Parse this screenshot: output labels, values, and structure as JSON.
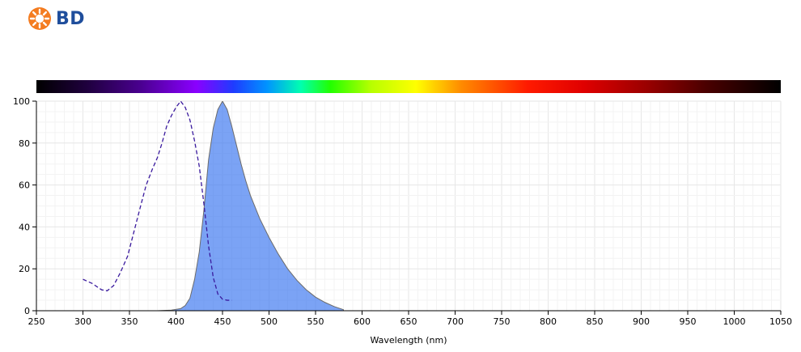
{
  "brand": {
    "name": "BD",
    "color": "#f47c20",
    "text_color": "#1f4e9c"
  },
  "chart_data": {
    "type": "area",
    "xlabel": "Wavelength (nm)",
    "ylabel": "",
    "xlim": [
      250,
      1050
    ],
    "ylim": [
      0,
      100
    ],
    "x_ticks": [
      250,
      300,
      350,
      400,
      450,
      500,
      550,
      600,
      650,
      700,
      750,
      800,
      850,
      900,
      950,
      1000,
      1050
    ],
    "y_ticks": [
      0,
      20,
      40,
      60,
      80,
      100
    ],
    "grid": true,
    "spectrum_bar": true,
    "series": [
      {
        "style": "dashed-line",
        "color": "#3a1a9e",
        "x": [
          300,
          310,
          320,
          326,
          333,
          340,
          348,
          355,
          362,
          368,
          375,
          380,
          385,
          390,
          395,
          400,
          405,
          410,
          415,
          420,
          425,
          430,
          435,
          440,
          445,
          450,
          455,
          460
        ],
        "y": [
          15,
          13,
          10,
          9.5,
          12,
          18,
          26,
          38,
          50,
          60,
          68,
          73,
          80,
          88,
          93,
          97,
          100,
          97,
          91,
          81,
          69,
          51,
          31,
          16,
          8,
          5.5,
          5,
          5
        ]
      },
      {
        "style": "filled-area",
        "color": "#3d78f0",
        "x": [
          380,
          395,
          405,
          410,
          415,
          420,
          425,
          430,
          435,
          440,
          445,
          450,
          455,
          460,
          465,
          470,
          475,
          480,
          490,
          500,
          510,
          520,
          530,
          540,
          550,
          560,
          570,
          580
        ],
        "y": [
          0,
          0.3,
          1,
          2.5,
          6,
          15,
          28,
          48,
          72,
          87,
          96,
          100,
          96,
          88,
          79,
          70,
          62,
          55,
          44,
          35,
          27,
          20,
          14.5,
          10,
          6.5,
          4,
          2,
          0.5
        ]
      }
    ]
  }
}
